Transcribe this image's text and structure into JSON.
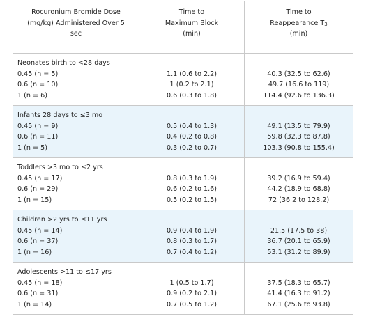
{
  "table": {
    "headers": [
      {
        "lines": [
          "Rocuronium Bromide Dose",
          "(mg/kg) Administered Over 5",
          "sec"
        ]
      },
      {
        "lines": [
          "Time to",
          "Maximum Block",
          "(min)"
        ]
      },
      {
        "lines": [
          "Time to",
          "Reappearance T",
          "(min)"
        ],
        "subscript": "3"
      }
    ],
    "groups": [
      {
        "label": "Neonates birth to <28 days",
        "rows": [
          {
            "dose": "0.45 (n = 5)",
            "max_block": "1.1 (0.6 to 2.2)",
            "reappearance": "40.3 (32.5 to 62.6)"
          },
          {
            "dose": "0.6 (n = 10)",
            "max_block": "1 (0.2 to 2.1)",
            "reappearance": "49.7 (16.6 to 119)"
          },
          {
            "dose": "1 (n = 6)",
            "max_block": "0.6 (0.3 to 1.8)",
            "reappearance": "114.4 (92.6 to 136.3)"
          }
        ]
      },
      {
        "label": "Infants 28 days to ≤3 mo",
        "rows": [
          {
            "dose": "0.45 (n = 9)",
            "max_block": "0.5 (0.4 to 1.3)",
            "reappearance": "49.1 (13.5 to 79.9)"
          },
          {
            "dose": "0.6 (n = 11)",
            "max_block": "0.4 (0.2 to 0.8)",
            "reappearance": "59.8 (32.3 to 87.8)"
          },
          {
            "dose": "1 (n = 5)",
            "max_block": "0.3 (0.2 to 0.7)",
            "reappearance": "103.3 (90.8 to 155.4)"
          }
        ]
      },
      {
        "label": "Toddlers >3 mo to ≤2 yrs",
        "rows": [
          {
            "dose": "0.45 (n = 17)",
            "max_block": "0.8 (0.3 to 1.9)",
            "reappearance": "39.2 (16.9 to 59.4)"
          },
          {
            "dose": "0.6 (n = 29)",
            "max_block": "0.6 (0.2 to 1.6)",
            "reappearance": "44.2 (18.9 to 68.8)"
          },
          {
            "dose": "1 (n = 15)",
            "max_block": "0.5 (0.2 to 1.5)",
            "reappearance": "72 (36.2 to 128.2)"
          }
        ]
      },
      {
        "label": "Children >2 yrs to ≤11 yrs",
        "rows": [
          {
            "dose": "0.45 (n = 14)",
            "max_block": "0.9 (0.4 to 1.9)",
            "reappearance": "21.5 (17.5 to 38)"
          },
          {
            "dose": "0.6 (n = 37)",
            "max_block": "0.8 (0.3 to 1.7)",
            "reappearance": "36.7 (20.1 to 65.9)"
          },
          {
            "dose": "1 (n = 16)",
            "max_block": "0.7 (0.4 to 1.2)",
            "reappearance": "53.1 (31.2 to 89.9)"
          }
        ]
      },
      {
        "label": "Adolescents >11 to ≤17 yrs",
        "rows": [
          {
            "dose": "0.45 (n = 18)",
            "max_block": "1 (0.5 to 1.7)",
            "reappearance": "37.5 (18.3 to 65.7)"
          },
          {
            "dose": "0.6 (n = 31)",
            "max_block": "0.9 (0.2 to 2.1)",
            "reappearance": "41.4 (16.3 to 91.2)"
          },
          {
            "dose": "1 (n = 14)",
            "max_block": "0.7 (0.5 to 1.2)",
            "reappearance": "67.1 (25.6 to 93.8)"
          }
        ]
      }
    ],
    "colors": {
      "shaded_row_bg": "#e9f4fb",
      "border": "#c9c9c9",
      "text": "#222222"
    }
  }
}
